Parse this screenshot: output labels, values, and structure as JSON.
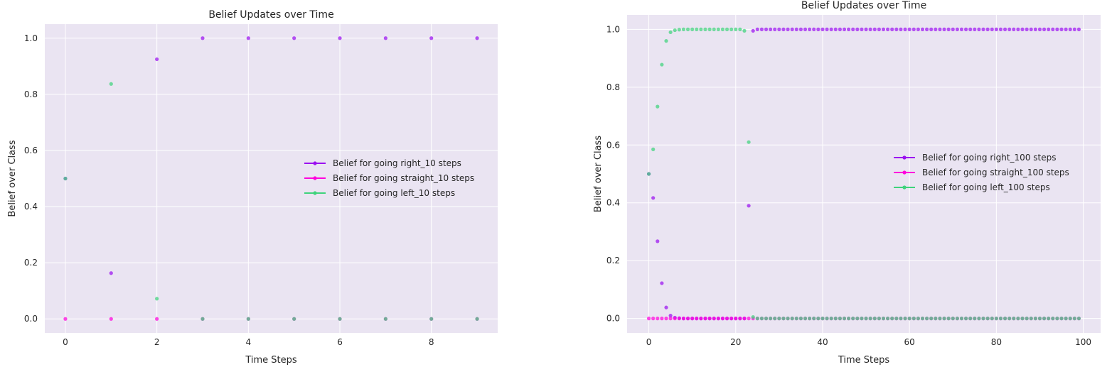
{
  "chart_data": [
    {
      "type": "scatter",
      "title": "Belief Updates over Time",
      "xlabel": "Time Steps",
      "ylabel": "Belief over Class",
      "xlim": [
        -0.45,
        9.45
      ],
      "ylim": [
        -0.05,
        1.05
      ],
      "xticks": [
        0,
        2,
        4,
        6,
        8
      ],
      "yticks": [
        0.0,
        0.2,
        0.4,
        0.6,
        0.8,
        1.0
      ],
      "grid": true,
      "legend_position": "center-right",
      "series": [
        {
          "name": "Belief for going right_10 steps",
          "color": "#9b10f0",
          "x": [
            0,
            1,
            2,
            3,
            4,
            5,
            6,
            7,
            8,
            9
          ],
          "values": [
            0.5,
            0.163,
            0.925,
            1.0,
            1.0,
            1.0,
            1.0,
            1.0,
            1.0,
            1.0
          ]
        },
        {
          "name": "Belief for going straight_10 steps",
          "color": "#ff00dd",
          "x": [
            0,
            1,
            2,
            3,
            4,
            5,
            6,
            7,
            8,
            9
          ],
          "values": [
            0.0,
            0.0,
            0.0,
            0.0,
            0.0,
            0.0,
            0.0,
            0.0,
            0.0,
            0.0
          ]
        },
        {
          "name": "Belief for going left_10 steps",
          "color": "#3fd37c",
          "x": [
            0,
            1,
            2,
            3,
            4,
            5,
            6,
            7,
            8,
            9
          ],
          "values": [
            0.5,
            0.837,
            0.072,
            0.0,
            0.0,
            0.0,
            0.0,
            0.0,
            0.0,
            0.0
          ]
        }
      ]
    },
    {
      "type": "scatter",
      "title": "Belief Updates over Time",
      "xlabel": "Time Steps",
      "ylabel": "Belief over Class",
      "xlim": [
        -5,
        104
      ],
      "ylim": [
        -0.05,
        1.05
      ],
      "xticks": [
        0,
        20,
        40,
        60,
        80,
        100
      ],
      "yticks": [
        0.0,
        0.2,
        0.4,
        0.6,
        0.8,
        1.0
      ],
      "grid": true,
      "legend_position": "center-right",
      "series": [
        {
          "name": "Belief for going right_100 steps",
          "color": "#9b10f0",
          "start": 0,
          "head": [
            0.5,
            0.417,
            0.267,
            0.122,
            0.038,
            0.01,
            0.003,
            0.001,
            0,
            0,
            0,
            0,
            0,
            0,
            0,
            0,
            0,
            0,
            0,
            0,
            0,
            0,
            0,
            0.39,
            0.995
          ],
          "tail_value": 1.0,
          "end": 99
        },
        {
          "name": "Belief for going straight_100 steps",
          "color": "#ff00dd",
          "start": 0,
          "head": [
            0.0
          ],
          "tail_value": 0.0,
          "end": 99
        },
        {
          "name": "Belief for going left_100 steps",
          "color": "#3fd37c",
          "start": 0,
          "head": [
            0.5,
            0.585,
            0.733,
            0.878,
            0.96,
            0.99,
            0.997,
            0.999,
            1,
            1,
            1,
            1,
            1,
            1,
            1,
            1,
            1,
            1,
            1,
            1,
            1,
            1,
            0.995,
            0.61,
            0.005
          ],
          "tail_value": 0.0,
          "end": 99
        }
      ]
    }
  ]
}
